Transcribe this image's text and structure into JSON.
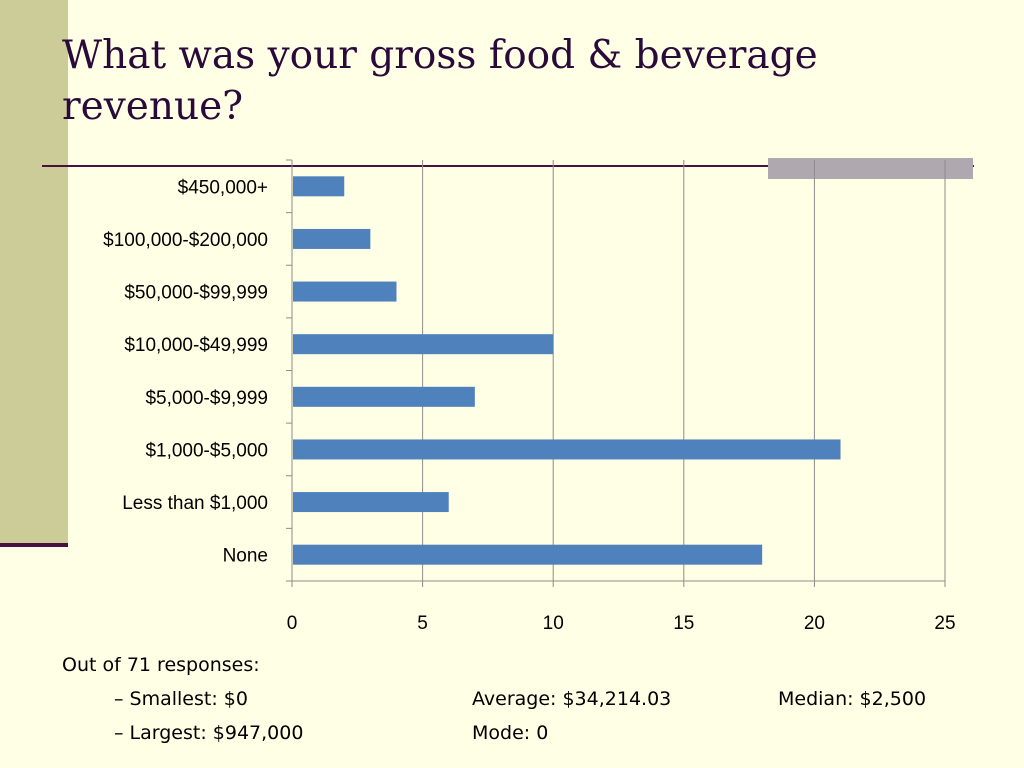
{
  "slide": {
    "title": "What was your gross food & beverage revenue?"
  },
  "chart_data": {
    "type": "bar",
    "orientation": "horizontal",
    "categories": [
      "$450,000+",
      "$100,000-$200,000",
      "$50,000-$99,999",
      "$10,000-$49,999",
      "$5,000-$9,999",
      "$1,000-$5,000",
      "Less than $1,000",
      "None"
    ],
    "values": [
      2,
      3,
      4,
      10,
      7,
      21,
      6,
      18
    ],
    "xlim": [
      0,
      25
    ],
    "xticks": [
      0,
      5,
      10,
      15,
      20,
      25
    ],
    "grid": true,
    "bar_color": "#4F81BD",
    "title": "",
    "xlabel": "",
    "ylabel": ""
  },
  "notes": {
    "heading": "Out of 71 responses:",
    "smallest": "–   Smallest:  $0",
    "largest": "–   Largest:  $947,000",
    "average": "Average:  $34,214.03",
    "mode": "Mode:  0",
    "median": "Median: $2,500"
  }
}
